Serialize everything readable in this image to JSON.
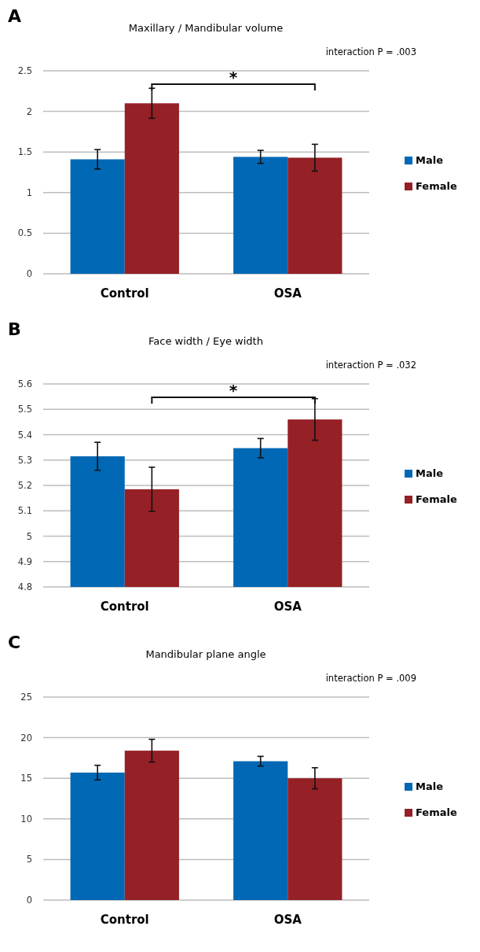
{
  "chart_data": [
    {
      "type": "bar",
      "title": "Maxillary / Mandibular volume",
      "categories": [
        "Control",
        "OSA"
      ],
      "series": [
        {
          "name": "Male",
          "color": "#0068b4",
          "values": [
            1.41,
            1.44
          ],
          "errors": [
            0.12,
            0.08
          ]
        },
        {
          "name": "Female",
          "color": "#952026",
          "values": [
            2.1,
            1.43
          ],
          "errors": [
            0.185,
            0.165
          ]
        }
      ],
      "ylim": [
        0,
        2.5
      ],
      "yticks": [
        0,
        0.5,
        1,
        1.5,
        2,
        2.5
      ],
      "grid": "y",
      "legend": "right",
      "annotations": [
        "A",
        "interaction P = .003",
        "*"
      ]
    },
    {
      "type": "bar",
      "title": "Face width / Eye width",
      "categories": [
        "Control",
        "OSA"
      ],
      "series": [
        {
          "name": "Male",
          "color": "#0068b4",
          "values": [
            5.315,
            5.347
          ],
          "errors": [
            0.055,
            0.038
          ]
        },
        {
          "name": "Female",
          "color": "#952026",
          "values": [
            5.185,
            5.46
          ],
          "errors": [
            0.087,
            0.082
          ]
        }
      ],
      "ylim": [
        4.8,
        5.6
      ],
      "yticks": [
        4.8,
        4.9,
        5,
        5.1,
        5.2,
        5.3,
        5.4,
        5.5,
        5.6
      ],
      "grid": "y",
      "legend": "right",
      "annotations": [
        "B",
        "interaction P = .032",
        "*"
      ]
    },
    {
      "type": "bar",
      "title": "Mandibular plane angle",
      "categories": [
        "Control",
        "OSA"
      ],
      "series": [
        {
          "name": "Male",
          "color": "#0068b4",
          "values": [
            15.7,
            17.1
          ],
          "errors": [
            0.9,
            0.6
          ]
        },
        {
          "name": "Female",
          "color": "#952026",
          "values": [
            18.4,
            15.0
          ],
          "errors": [
            1.4,
            1.3
          ]
        }
      ],
      "ylim": [
        0,
        25
      ],
      "yticks": [
        0,
        5,
        10,
        15,
        20,
        25
      ],
      "grid": "y",
      "legend": "right",
      "annotations": [
        "C",
        "interaction P = .009"
      ]
    }
  ]
}
